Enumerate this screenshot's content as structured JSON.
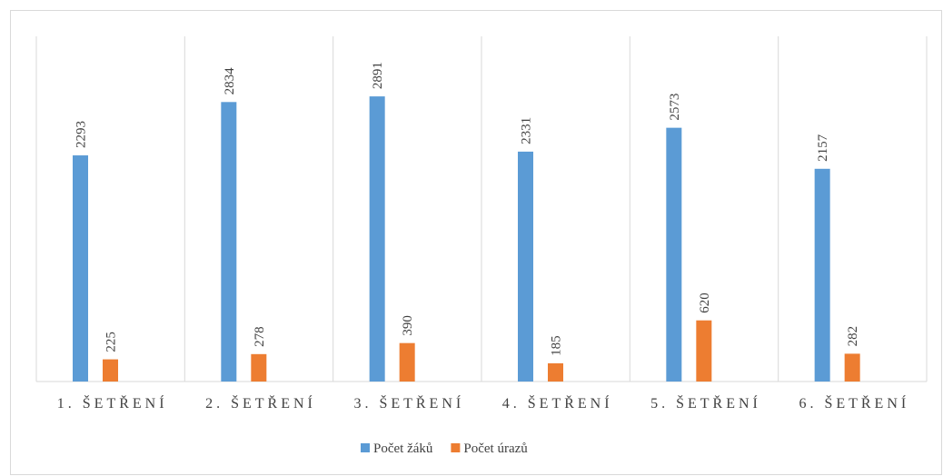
{
  "chart_data": {
    "type": "bar",
    "categories": [
      "1. ŠETŘENÍ",
      "2. ŠETŘENÍ",
      "3. ŠETŘENÍ",
      "4. ŠETŘENÍ",
      "5. ŠETŘENÍ",
      "6. ŠETŘENÍ"
    ],
    "series": [
      {
        "name": "Počet žáků",
        "color": "#5b9bd5",
        "values": [
          2293,
          2834,
          2891,
          2331,
          2573,
          2157
        ]
      },
      {
        "name": "Počet úrazů",
        "color": "#ed7d31",
        "values": [
          225,
          278,
          390,
          185,
          620,
          282
        ]
      }
    ],
    "ylim": [
      0,
      3500
    ],
    "grid": true,
    "legend": "bottom"
  }
}
